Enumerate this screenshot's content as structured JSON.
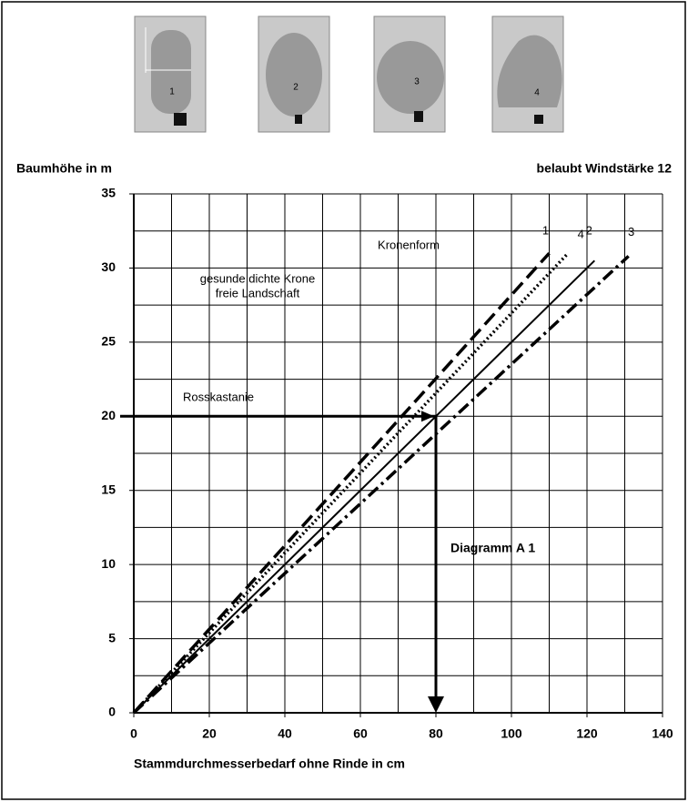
{
  "chart_data": {
    "type": "line",
    "title": "Diagramm A 1",
    "subtitle": "belaubt Windstärke 12",
    "x_label": "Stammdurchmesserbedarf ohne Rinde in cm",
    "y_label": "Baumhöhe in m",
    "legend_title": "Kronenform",
    "annotations": [
      "gesunde dichte Krone",
      "freie Landschaft",
      "Rosskastanie"
    ],
    "xlim": [
      0,
      140
    ],
    "ylim": [
      0,
      35
    ],
    "xticks": [
      0,
      20,
      40,
      60,
      80,
      100,
      120,
      140
    ],
    "yticks": [
      0,
      5,
      10,
      15,
      20,
      25,
      30,
      35
    ],
    "xgrid": [
      0,
      10,
      20,
      30,
      40,
      50,
      60,
      70,
      80,
      90,
      100,
      110,
      120,
      130,
      140
    ],
    "ygrid": [
      0,
      2.5,
      5,
      7.5,
      10,
      12.5,
      15,
      17.5,
      20,
      22.5,
      25,
      27.5,
      30,
      32.5,
      35
    ],
    "grid": true,
    "reading": {
      "x": 80,
      "y": 20
    },
    "series": [
      {
        "name": "1",
        "color": "#000000",
        "style": "dashed",
        "x": [
          0,
          110
        ],
        "values": [
          0,
          31
        ]
      },
      {
        "name": "2",
        "color": "#000000",
        "style": "solid",
        "x": [
          0,
          122
        ],
        "values": [
          0,
          30.5
        ]
      },
      {
        "name": "3",
        "color": "#000000",
        "style": "dash-dot",
        "x": [
          0,
          131
        ],
        "values": [
          0,
          30.8
        ]
      },
      {
        "name": "4",
        "color": "#000000",
        "style": "dotted",
        "x": [
          0,
          115
        ],
        "values": [
          0,
          31
        ]
      }
    ]
  }
}
